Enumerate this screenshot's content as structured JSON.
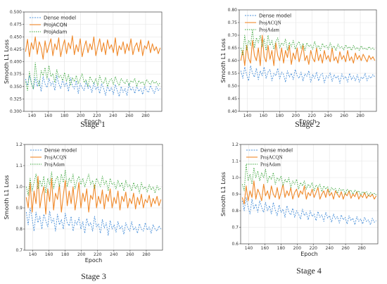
{
  "chart_data": [
    {
      "type": "line",
      "caption": "Stage 1",
      "xlabel": "Epoch",
      "ylabel": "Smooth L1 Loss",
      "xlim": [
        130,
        300
      ],
      "ylim": [
        0.3,
        0.5
      ],
      "xticks": [
        "140",
        "160",
        "180",
        "200",
        "220",
        "240",
        "260",
        "280"
      ],
      "yticks": [
        "0.300",
        "0.325",
        "0.350",
        "0.375",
        "0.400",
        "0.425",
        "0.450",
        "0.475",
        "0.500"
      ],
      "grid": true,
      "legend": "top-left",
      "series": [
        {
          "name": "Dense model",
          "color": "#4a90d9",
          "dash": "2,1.5",
          "values": [
            0.365,
            0.352,
            0.372,
            0.358,
            0.345,
            0.368,
            0.35,
            0.362,
            0.34,
            0.37,
            0.355,
            0.348,
            0.366,
            0.352,
            0.36,
            0.342,
            0.372,
            0.356,
            0.346,
            0.364,
            0.35,
            0.358,
            0.34,
            0.368,
            0.352,
            0.345,
            0.362,
            0.336,
            0.356,
            0.348,
            0.342,
            0.36,
            0.346,
            0.352,
            0.338,
            0.358,
            0.344,
            0.35,
            0.336,
            0.356,
            0.346,
            0.332,
            0.352,
            0.34,
            0.348,
            0.334,
            0.354,
            0.342,
            0.33,
            0.35,
            0.338,
            0.346,
            0.332,
            0.356,
            0.342,
            0.348,
            0.336,
            0.352,
            0.34,
            0.346,
            0.334,
            0.35,
            0.342,
            0.338,
            0.352,
            0.344,
            0.336,
            0.35,
            0.342,
            0.346
          ]
        },
        {
          "name": "ProjACQN",
          "color": "#f0892a",
          "dash": "",
          "values": [
            0.42,
            0.445,
            0.41,
            0.438,
            0.425,
            0.45,
            0.415,
            0.44,
            0.428,
            0.405,
            0.442,
            0.418,
            0.432,
            0.446,
            0.412,
            0.436,
            0.424,
            0.448,
            0.41,
            0.43,
            0.444,
            0.416,
            0.438,
            0.426,
            0.452,
            0.414,
            0.434,
            0.42,
            0.446,
            0.41,
            0.428,
            0.442,
            0.418,
            0.436,
            0.424,
            0.45,
            0.412,
            0.43,
            0.446,
            0.42,
            0.438,
            0.414,
            0.444,
            0.426,
            0.434,
            0.418,
            0.448,
            0.412,
            0.432,
            0.424,
            0.44,
            0.416,
            0.436,
            0.422,
            0.446,
            0.414,
            0.43,
            0.438,
            0.42,
            0.444,
            0.412,
            0.432,
            0.426,
            0.442,
            0.418,
            0.436,
            0.422,
            0.43,
            0.416,
            0.428
          ]
        },
        {
          "name": "ProjAdam",
          "color": "#3aa53a",
          "dash": "1.5,1.5",
          "values": [
            0.36,
            0.342,
            0.38,
            0.355,
            0.345,
            0.398,
            0.362,
            0.35,
            0.382,
            0.372,
            0.388,
            0.365,
            0.392,
            0.37,
            0.376,
            0.358,
            0.384,
            0.368,
            0.372,
            0.362,
            0.378,
            0.36,
            0.374,
            0.352,
            0.368,
            0.36,
            0.372,
            0.356,
            0.366,
            0.376,
            0.358,
            0.364,
            0.35,
            0.37,
            0.362,
            0.356,
            0.366,
            0.352,
            0.372,
            0.36,
            0.356,
            0.368,
            0.35,
            0.362,
            0.366,
            0.354,
            0.37,
            0.358,
            0.352,
            0.366,
            0.36,
            0.356,
            0.364,
            0.352,
            0.362,
            0.358,
            0.366,
            0.35,
            0.362,
            0.356,
            0.36,
            0.352,
            0.364,
            0.358,
            0.354,
            0.362,
            0.356,
            0.36,
            0.352,
            0.358
          ]
        }
      ]
    },
    {
      "type": "line",
      "caption": "Stage 2",
      "xlabel": "Epoch",
      "ylabel": "Smooth L1 Loss",
      "xlim": [
        130,
        300
      ],
      "ylim": [
        0.4,
        0.8
      ],
      "xticks": [
        "140",
        "160",
        "180",
        "200",
        "220",
        "240",
        "260",
        "280"
      ],
      "yticks": [
        "0.40",
        "0.45",
        "0.50",
        "0.55",
        "0.60",
        "0.65",
        "0.70",
        "0.75",
        "0.80"
      ],
      "grid": true,
      "legend": "top-left",
      "series": [
        {
          "name": "Dense model",
          "color": "#4a90d9",
          "dash": "2,1.5",
          "values": [
            0.56,
            0.53,
            0.575,
            0.545,
            0.52,
            0.58,
            0.55,
            0.535,
            0.57,
            0.525,
            0.56,
            0.54,
            0.575,
            0.53,
            0.555,
            0.565,
            0.52,
            0.55,
            0.54,
            0.57,
            0.528,
            0.555,
            0.545,
            0.515,
            0.56,
            0.535,
            0.55,
            0.525,
            0.565,
            0.54,
            0.53,
            0.555,
            0.52,
            0.548,
            0.538,
            0.56,
            0.515,
            0.545,
            0.53,
            0.555,
            0.52,
            0.542,
            0.55,
            0.512,
            0.54,
            0.532,
            0.552,
            0.518,
            0.545,
            0.53,
            0.54,
            0.51,
            0.548,
            0.528,
            0.538,
            0.515,
            0.55,
            0.525,
            0.54,
            0.52,
            0.545,
            0.515,
            0.535,
            0.528,
            0.55,
            0.52,
            0.54,
            0.53,
            0.545,
            0.535
          ]
        },
        {
          "name": "ProjACQN",
          "color": "#f0892a",
          "dash": "",
          "values": [
            0.6,
            0.64,
            0.58,
            0.66,
            0.61,
            0.59,
            0.68,
            0.62,
            0.6,
            0.65,
            0.58,
            0.7,
            0.615,
            0.595,
            0.66,
            0.605,
            0.64,
            0.58,
            0.67,
            0.62,
            0.6,
            0.65,
            0.59,
            0.64,
            0.612,
            0.66,
            0.585,
            0.63,
            0.605,
            0.65,
            0.595,
            0.625,
            0.66,
            0.6,
            0.62,
            0.585,
            0.64,
            0.61,
            0.595,
            0.65,
            0.6,
            0.625,
            0.59,
            0.64,
            0.605,
            0.62,
            0.595,
            0.65,
            0.6,
            0.615,
            0.59,
            0.635,
            0.605,
            0.62,
            0.595,
            0.64,
            0.6,
            0.615,
            0.59,
            0.63,
            0.605,
            0.62,
            0.6,
            0.625,
            0.61,
            0.595,
            0.62,
            0.605,
            0.615,
            0.6
          ]
        },
        {
          "name": "ProjAdam",
          "color": "#3aa53a",
          "dash": "1.5,1.5",
          "values": [
            0.65,
            0.62,
            0.7,
            0.64,
            0.68,
            0.66,
            0.72,
            0.65,
            0.69,
            0.67,
            0.7,
            0.655,
            0.685,
            0.64,
            0.7,
            0.66,
            0.68,
            0.645,
            0.675,
            0.69,
            0.65,
            0.67,
            0.66,
            0.685,
            0.64,
            0.672,
            0.655,
            0.68,
            0.645,
            0.665,
            0.675,
            0.648,
            0.668,
            0.64,
            0.67,
            0.655,
            0.662,
            0.645,
            0.675,
            0.65,
            0.66,
            0.64,
            0.668,
            0.652,
            0.66,
            0.645,
            0.67,
            0.648,
            0.658,
            0.64,
            0.665,
            0.65,
            0.655,
            0.642,
            0.662,
            0.648,
            0.655,
            0.64,
            0.66,
            0.645,
            0.652,
            0.64,
            0.658,
            0.645,
            0.65,
            0.642,
            0.655,
            0.645,
            0.65,
            0.64
          ]
        }
      ]
    },
    {
      "type": "line",
      "caption": "Stage 3",
      "xlabel": "Epoch",
      "ylabel": "Smooth L1 Loss",
      "xlim": [
        130,
        300
      ],
      "ylim": [
        0.7,
        1.2
      ],
      "xticks": [
        "140",
        "160",
        "180",
        "200",
        "220",
        "240",
        "260",
        "280"
      ],
      "yticks": [
        "0.7",
        "0.8",
        "0.9",
        "1.0",
        "1.1",
        "1.2"
      ],
      "grid": true,
      "legend": "top-left",
      "series": [
        {
          "name": "Dense model",
          "color": "#4a90d9",
          "dash": "2,1.5",
          "values": [
            0.88,
            0.82,
            0.9,
            0.85,
            0.79,
            0.88,
            0.83,
            0.86,
            0.8,
            0.87,
            0.84,
            0.81,
            0.885,
            0.83,
            0.85,
            0.79,
            0.87,
            0.82,
            0.845,
            0.8,
            0.875,
            0.83,
            0.815,
            0.86,
            0.79,
            0.84,
            0.82,
            0.855,
            0.8,
            0.835,
            0.78,
            0.85,
            0.815,
            0.83,
            0.79,
            0.86,
            0.81,
            0.825,
            0.78,
            0.845,
            0.805,
            0.83,
            0.77,
            0.84,
            0.8,
            0.82,
            0.785,
            0.835,
            0.8,
            0.815,
            0.775,
            0.83,
            0.805,
            0.79,
            0.835,
            0.795,
            0.81,
            0.78,
            0.825,
            0.8,
            0.79,
            0.83,
            0.795,
            0.81,
            0.78,
            0.82,
            0.8,
            0.79,
            0.815,
            0.8
          ]
        },
        {
          "name": "ProjACQN",
          "color": "#f0892a",
          "dash": "",
          "values": [
            0.95,
            0.9,
            1.02,
            0.88,
            0.98,
            0.92,
            1.05,
            0.9,
            0.96,
            1.0,
            0.87,
            0.99,
            0.93,
            1.04,
            0.89,
            0.97,
            0.94,
            1.01,
            0.88,
            0.96,
            1.03,
            0.91,
            0.98,
            0.92,
            1.0,
            0.89,
            0.95,
            1.02,
            0.9,
            0.97,
            0.93,
            0.99,
            0.88,
            0.96,
            0.94,
            1.01,
            0.9,
            0.955,
            0.92,
            0.985,
            0.895,
            0.965,
            0.93,
            0.99,
            0.9,
            0.95,
            0.92,
            0.98,
            0.89,
            0.955,
            0.93,
            0.975,
            0.9,
            0.945,
            0.92,
            0.97,
            0.895,
            0.95,
            0.915,
            0.965,
            0.9,
            0.94,
            0.925,
            0.96,
            0.905,
            0.945,
            0.92,
            0.955,
            0.91,
            0.94
          ]
        },
        {
          "name": "ProjAdam",
          "color": "#3aa53a",
          "dash": "1.5,1.5",
          "values": [
            1.0,
            0.96,
            1.04,
            0.98,
            1.02,
            1.06,
            0.99,
            1.03,
            1.0,
            1.05,
            0.97,
            1.04,
            1.01,
            1.07,
            0.99,
            1.03,
            1.05,
            1.0,
            1.06,
            1.02,
            1.08,
            1.0,
            1.04,
            1.02,
            1.06,
            0.99,
            1.03,
            1.05,
            1.01,
            1.04,
            1.0,
            1.03,
            1.06,
            1.01,
            1.03,
            0.99,
            1.04,
            1.02,
            1.0,
            1.05,
            1.01,
            1.03,
            0.98,
            1.04,
            1.01,
            1.02,
            0.99,
            1.03,
            1.0,
            1.02,
            0.98,
            1.03,
            1.0,
            1.01,
            0.98,
            1.02,
            0.99,
            1.01,
            0.97,
            1.02,
            0.99,
            1.0,
            0.975,
            1.01,
            0.985,
            1.0,
            0.97,
            1.005,
            0.985,
            0.995
          ]
        }
      ]
    },
    {
      "type": "line",
      "caption": "Stage 4",
      "xlabel": "Epoch",
      "ylabel": "Smooth L1 Loss",
      "xlim": [
        130,
        300
      ],
      "ylim": [
        0.6,
        1.2
      ],
      "xticks": [
        "140",
        "160",
        "180",
        "200",
        "220",
        "240",
        "260",
        "280"
      ],
      "yticks": [
        "0.6",
        "0.7",
        "0.8",
        "0.9",
        "1.0",
        "1.1",
        "1.2"
      ],
      "grid": true,
      "legend": "top-left",
      "series": [
        {
          "name": "Dense model",
          "color": "#4a90d9",
          "dash": "2,1.5",
          "values": [
            0.86,
            0.8,
            0.88,
            0.82,
            0.78,
            0.87,
            0.81,
            0.84,
            0.79,
            0.86,
            0.82,
            0.79,
            0.85,
            0.8,
            0.83,
            0.78,
            0.85,
            0.805,
            0.77,
            0.835,
            0.79,
            0.81,
            0.76,
            0.83,
            0.79,
            0.775,
            0.815,
            0.76,
            0.8,
            0.78,
            0.75,
            0.81,
            0.77,
            0.79,
            0.745,
            0.8,
            0.765,
            0.78,
            0.74,
            0.795,
            0.76,
            0.775,
            0.735,
            0.79,
            0.755,
            0.77,
            0.73,
            0.78,
            0.75,
            0.765,
            0.725,
            0.775,
            0.745,
            0.76,
            0.72,
            0.77,
            0.74,
            0.755,
            0.715,
            0.765,
            0.735,
            0.75,
            0.72,
            0.76,
            0.735,
            0.745,
            0.715,
            0.755,
            0.73,
            0.74
          ]
        },
        {
          "name": "ProjACQN",
          "color": "#f0892a",
          "dash": "",
          "values": [
            0.88,
            0.84,
            0.95,
            0.86,
            0.92,
            0.88,
            0.98,
            0.87,
            0.93,
            0.9,
            0.86,
            0.96,
            0.89,
            0.92,
            0.87,
            0.95,
            0.9,
            0.88,
            0.94,
            0.87,
            0.91,
            0.96,
            0.88,
            0.92,
            0.89,
            0.94,
            0.87,
            0.91,
            0.93,
            0.88,
            0.92,
            0.9,
            0.95,
            0.87,
            0.91,
            0.89,
            0.93,
            0.88,
            0.91,
            0.94,
            0.87,
            0.9,
            0.92,
            0.88,
            0.93,
            0.89,
            0.91,
            0.87,
            0.92,
            0.9,
            0.88,
            0.915,
            0.87,
            0.905,
            0.89,
            0.92,
            0.875,
            0.9,
            0.885,
            0.915,
            0.87,
            0.895,
            0.88,
            0.91,
            0.875,
            0.895,
            0.885,
            0.9,
            0.87,
            0.89
          ]
        },
        {
          "name": "ProjAdam",
          "color": "#3aa53a",
          "dash": "1.5,1.5",
          "values": [
            0.96,
            0.92,
            1.08,
            0.98,
            1.02,
            0.96,
            1.06,
            1.0,
            1.04,
            0.98,
            1.03,
            1.0,
            1.05,
            0.97,
            1.01,
            0.99,
            1.03,
            0.96,
            1.0,
            0.98,
            1.01,
            0.95,
            0.99,
            0.97,
            1.0,
            0.94,
            0.98,
            0.96,
            0.99,
            0.93,
            0.97,
            0.95,
            0.98,
            0.93,
            0.96,
            0.94,
            0.97,
            0.92,
            0.955,
            0.94,
            0.96,
            0.915,
            0.95,
            0.93,
            0.945,
            0.91,
            0.94,
            0.925,
            0.935,
            0.905,
            0.935,
            0.92,
            0.93,
            0.9,
            0.93,
            0.915,
            0.925,
            0.9,
            0.925,
            0.91,
            0.92,
            0.895,
            0.915,
            0.905,
            0.915,
            0.89,
            0.91,
            0.9,
            0.905,
            0.895
          ]
        }
      ]
    }
  ]
}
